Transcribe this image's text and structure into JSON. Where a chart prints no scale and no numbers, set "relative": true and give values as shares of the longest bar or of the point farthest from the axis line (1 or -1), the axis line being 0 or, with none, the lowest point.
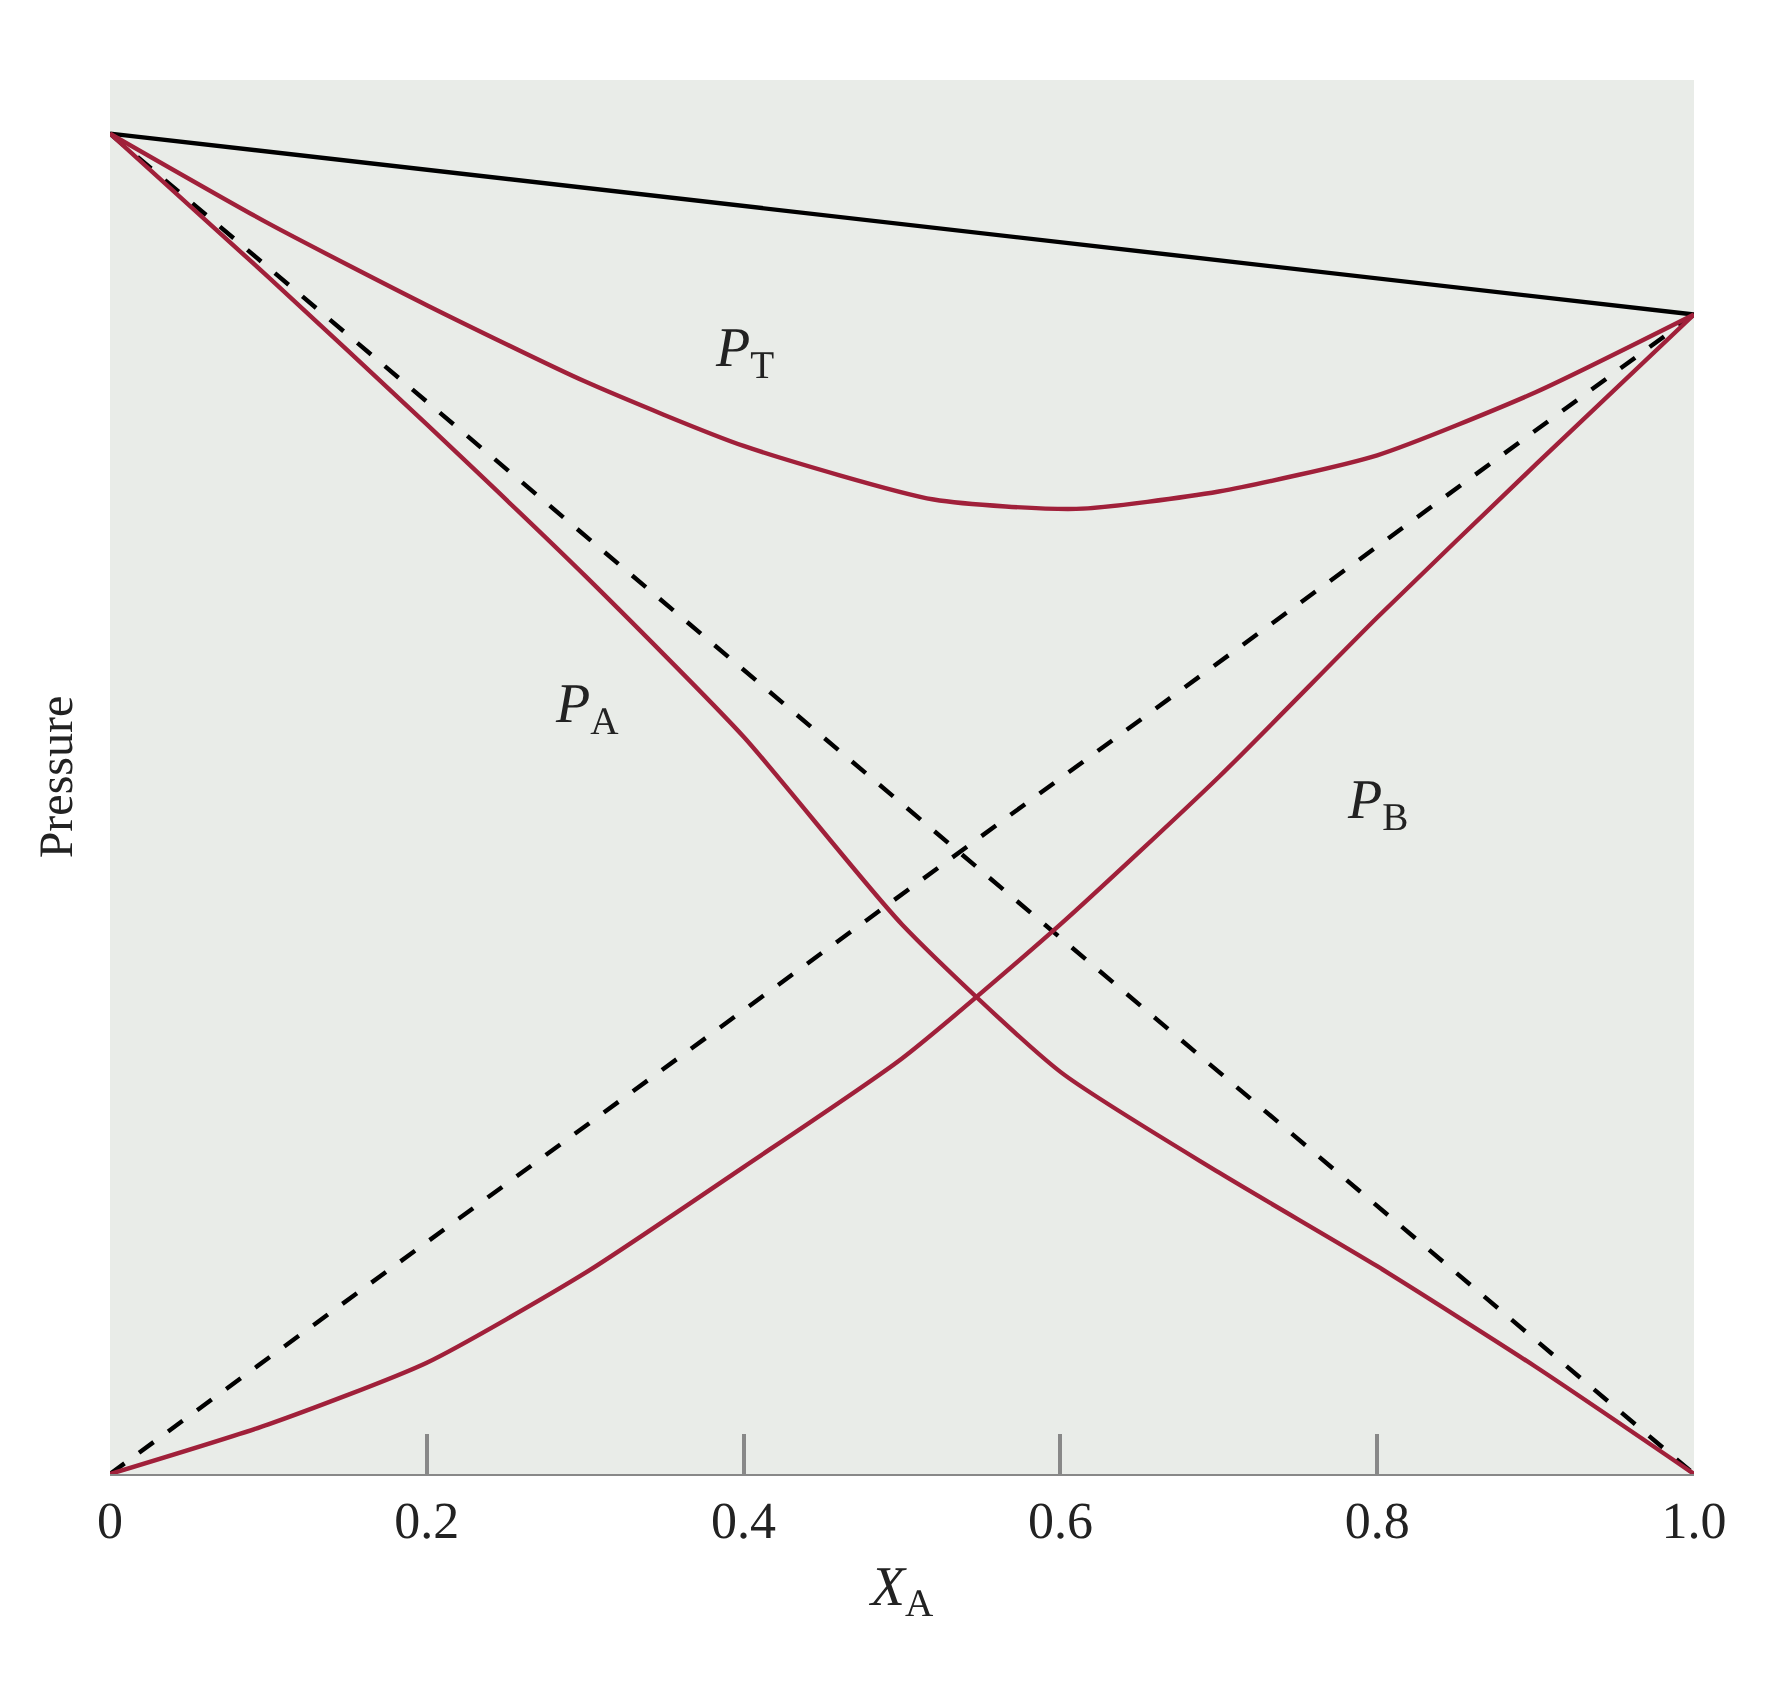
{
  "chart_data": {
    "type": "line",
    "relative": true,
    "xlabel": "X$_{A}$",
    "ylabel": "Pressure",
    "xlim": [
      0,
      1
    ],
    "xticks": [
      0,
      0.2,
      0.4,
      0.6,
      0.8,
      {
        "value": 1,
        "label": "1.0"
      }
    ],
    "tick_labels": "x",
    "grid": false,
    "legend": false,
    "series": [
      {
        "color": "#000000",
        "line_style": "solid",
        "x": [
          0,
          1
        ],
        "values": [
          1,
          0.865
        ]
      },
      {
        "color": "#000000",
        "line_style": "dashed",
        "x": [
          0,
          1
        ],
        "values": [
          1,
          0
        ]
      },
      {
        "color": "#000000",
        "line_style": "dashed",
        "x": [
          0,
          1
        ],
        "values": [
          0,
          0.865
        ]
      },
      {
        "name": "P$_{T}$",
        "color": "#a0203a",
        "line_style": "solid",
        "x": [
          0,
          0.1,
          0.2,
          0.3,
          0.4,
          0.52,
          0.61,
          0.7,
          0.8,
          0.9,
          1
        ],
        "values": [
          1,
          0.933,
          0.872,
          0.815,
          0.767,
          0.727,
          0.72,
          0.733,
          0.76,
          0.807,
          0.865
        ]
      },
      {
        "name": "P$_{A}$",
        "color": "#a0203a",
        "line_style": "solid",
        "x": [
          0,
          0.1,
          0.2,
          0.3,
          0.4,
          0.5,
          0.6,
          0.7,
          0.8,
          0.9,
          1
        ],
        "values": [
          1,
          0.893,
          0.783,
          0.67,
          0.55,
          0.41,
          0.3,
          0.225,
          0.155,
          0.08,
          0
        ]
      },
      {
        "name": "P$_{B}$",
        "color": "#a0203a",
        "line_style": "solid",
        "x": [
          0,
          0.1,
          0.2,
          0.3,
          0.4,
          0.5,
          0.6,
          0.7,
          0.8,
          0.9,
          1
        ],
        "values": [
          0,
          0.037,
          0.083,
          0.15,
          0.229,
          0.31,
          0.41,
          0.52,
          0.639,
          0.753,
          0.865
        ]
      }
    ]
  }
}
